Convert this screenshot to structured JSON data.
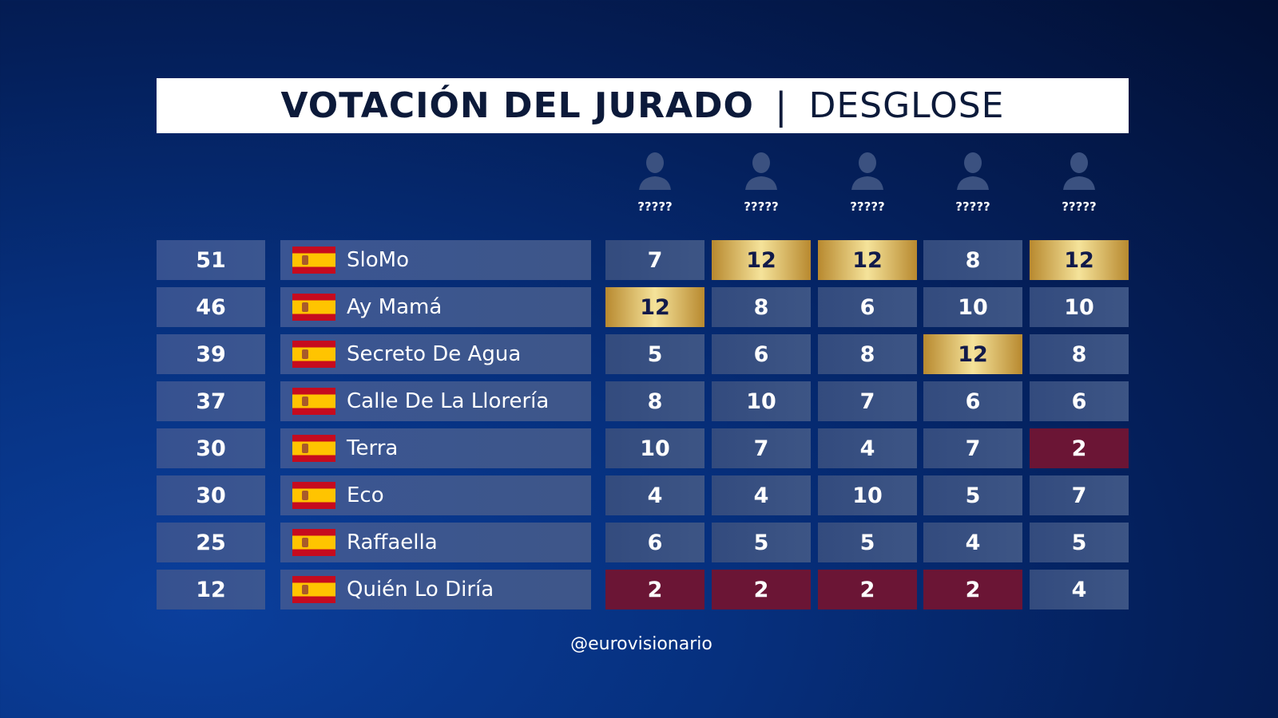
{
  "title": {
    "main": "VOTACIÓN DEL JURADO",
    "separator": "|",
    "sub": "DESGLOSE"
  },
  "judges": [
    "?????",
    "?????",
    "?????",
    "?????",
    "?????"
  ],
  "colors": {
    "gold": "#d9b25a",
    "red": "#6b1535",
    "cell": "#3a5186"
  },
  "rows": [
    {
      "total": "51",
      "song": "SloMo",
      "scores": [
        "7",
        "12",
        "12",
        "8",
        "12"
      ]
    },
    {
      "total": "46",
      "song": "Ay Mamá",
      "scores": [
        "12",
        "8",
        "6",
        "10",
        "10"
      ]
    },
    {
      "total": "39",
      "song": "Secreto De Agua",
      "scores": [
        "5",
        "6",
        "8",
        "12",
        "8"
      ]
    },
    {
      "total": "37",
      "song": "Calle De La Llorería",
      "scores": [
        "8",
        "10",
        "7",
        "6",
        "6"
      ]
    },
    {
      "total": "30",
      "song": "Terra",
      "scores": [
        "10",
        "7",
        "4",
        "7",
        "2"
      ]
    },
    {
      "total": "30",
      "song": "Eco",
      "scores": [
        "4",
        "4",
        "10",
        "5",
        "7"
      ]
    },
    {
      "total": "25",
      "song": "Raffaella",
      "scores": [
        "6",
        "5",
        "5",
        "4",
        "5"
      ]
    },
    {
      "total": "12",
      "song": "Quién Lo Diría",
      "scores": [
        "2",
        "2",
        "2",
        "2",
        "4"
      ]
    }
  ],
  "footer": "@eurovisionario"
}
